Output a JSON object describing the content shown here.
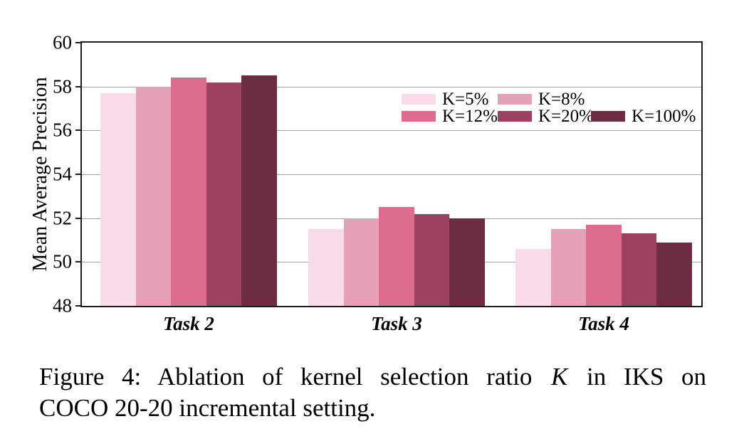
{
  "figure": {
    "caption": {
      "line1_pre": "Figure 4: Ablation of kernel selection ratio ",
      "kernel_symbol": "K",
      "line1_post": " in IKS on",
      "line2": "COCO 20-20 incremental setting."
    }
  },
  "chart_data": {
    "type": "bar",
    "title": "",
    "xlabel": "",
    "ylabel": "Mean Average Precision",
    "categories": [
      "Task 2",
      "Task 3",
      "Task 4"
    ],
    "series": [
      {
        "name": "K=5%",
        "color": "#f9dce8",
        "values": [
          57.7,
          51.5,
          50.6
        ]
      },
      {
        "name": "K=8%",
        "color": "#e8a0b8",
        "values": [
          58.0,
          52.0,
          51.5
        ]
      },
      {
        "name": "K=12%",
        "color": "#dd6c91",
        "values": [
          58.4,
          52.5,
          51.7
        ]
      },
      {
        "name": "K=20%",
        "color": "#9d4160",
        "values": [
          58.2,
          52.2,
          51.3
        ]
      },
      {
        "name": "K=100%",
        "color": "#6c2d43",
        "values": [
          58.5,
          52.0,
          50.9
        ]
      }
    ],
    "ylim": [
      48,
      60
    ],
    "yticks": [
      48,
      50,
      52,
      54,
      56,
      58,
      60
    ],
    "grid": true,
    "legend": {
      "position": "inside-top-right",
      "rows": [
        [
          "K=5%",
          "K=8%"
        ],
        [
          "K=12%",
          "K=20%",
          "K=100%"
        ]
      ]
    }
  }
}
